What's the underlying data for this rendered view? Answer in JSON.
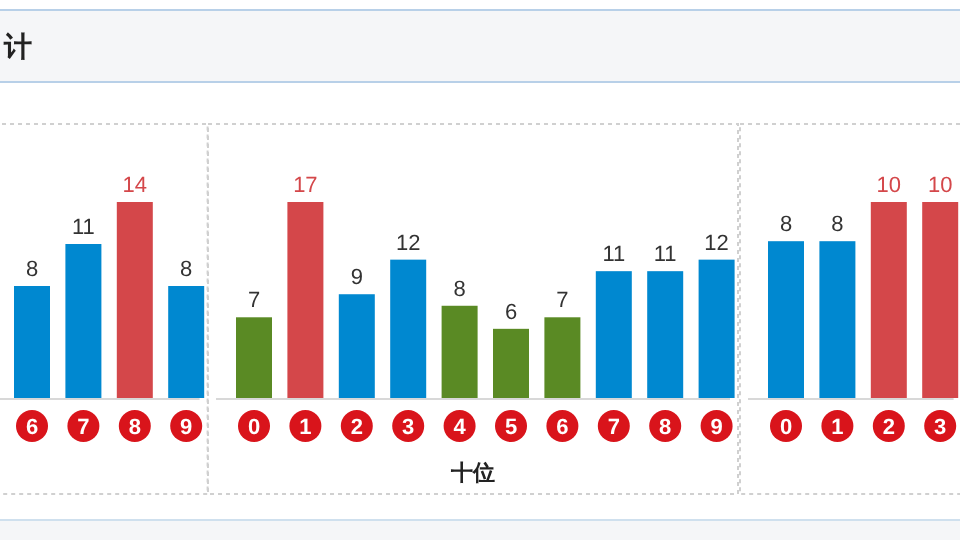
{
  "chart_data": [
    {
      "type": "bar",
      "title": "计",
      "categories": [
        "6",
        "7",
        "8",
        "9"
      ],
      "values": [
        8,
        11,
        14,
        8
      ],
      "colors": [
        "#0088d0",
        "#0088d0",
        "#d4474a",
        "#0088d0"
      ],
      "data_labels": true
    },
    {
      "type": "bar",
      "xlabel": "十位",
      "categories": [
        "0",
        "1",
        "2",
        "3",
        "4",
        "5",
        "6",
        "7",
        "8",
        "9"
      ],
      "values": [
        7,
        17,
        9,
        12,
        8,
        6,
        7,
        11,
        11,
        12
      ],
      "colors": [
        "#5a8a24",
        "#d4474a",
        "#0088d0",
        "#0088d0",
        "#5a8a24",
        "#5a8a24",
        "#5a8a24",
        "#0088d0",
        "#0088d0",
        "#0088d0"
      ],
      "data_labels": true
    },
    {
      "type": "bar",
      "categories": [
        "0",
        "1",
        "2",
        "3"
      ],
      "values": [
        8,
        8,
        10,
        10
      ],
      "colors": [
        "#0088d0",
        "#0088d0",
        "#d4474a",
        "#d4474a"
      ],
      "data_labels": true
    }
  ]
}
